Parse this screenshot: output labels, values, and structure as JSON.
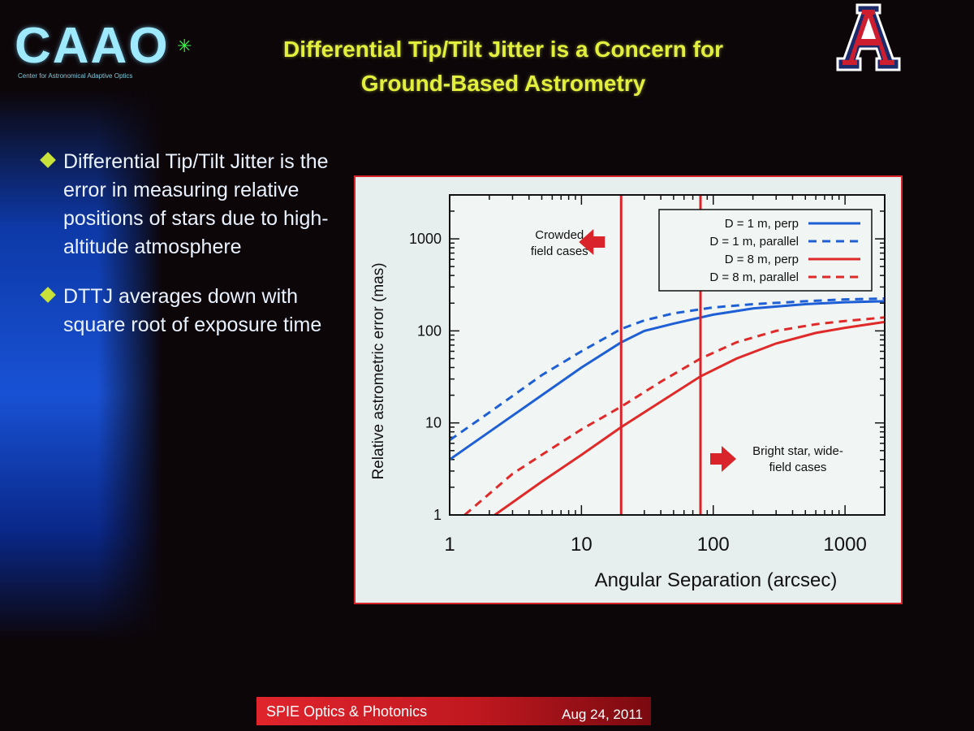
{
  "logo": {
    "text": "CAAO",
    "subtitle": "Center for Astronomical Adaptive Optics"
  },
  "slide": {
    "title_line1": "Differential Tip/Tilt Jitter is a Concern for",
    "title_line2": "Ground-Based Astrometry"
  },
  "university_logo": {
    "letter": "A"
  },
  "bullets": [
    "Differential Tip/Tilt Jitter is the error in measuring relative positions of stars due to high-altitude atmosphere",
    "DTTJ averages down with square root of exposure time"
  ],
  "footer": {
    "left": "SPIE Optics & Photonics",
    "right": "Aug 24, 2011"
  },
  "colors": {
    "title": "#e2ef3d",
    "blue_series": "#1f5fd6",
    "red_series": "#e02a2a",
    "bullet": "#c8e23a",
    "footer": "#d8242a"
  },
  "chart_data": {
    "type": "line",
    "xlabel": "Angular Separation (arcsec)",
    "ylabel": "Relative astrometric error (mas)",
    "xscale": "log",
    "yscale": "log",
    "xlim": [
      1,
      2000
    ],
    "ylim": [
      1,
      3000
    ],
    "xticks": [
      1,
      10,
      100,
      1000
    ],
    "xtick_labels": [
      "1",
      "10",
      "100",
      "1000"
    ],
    "yticks": [
      1,
      10,
      100,
      1000
    ],
    "ytick_labels": [
      "1",
      "10",
      "100",
      "1000"
    ],
    "legend_position": "top-right",
    "series": [
      {
        "name": "D = 1 m, perp",
        "color": "#1f5fd6",
        "dash": false,
        "x": [
          1,
          2,
          5,
          10,
          20,
          30,
          50,
          100,
          200,
          500,
          1000,
          2000
        ],
        "y": [
          4,
          8,
          20,
          40,
          75,
          100,
          120,
          150,
          175,
          195,
          205,
          210
        ]
      },
      {
        "name": "D = 1 m, parallel",
        "color": "#1f5fd6",
        "dash": true,
        "x": [
          1,
          2,
          5,
          10,
          20,
          30,
          50,
          100,
          200,
          500,
          1000,
          2000
        ],
        "y": [
          6.5,
          13,
          33,
          60,
          105,
          130,
          155,
          180,
          195,
          210,
          220,
          225
        ]
      },
      {
        "name": "D = 8 m, perp",
        "color": "#e02a2a",
        "dash": false,
        "x": [
          2.2,
          5,
          10,
          20,
          40,
          80,
          150,
          300,
          600,
          1000,
          2000
        ],
        "y": [
          1,
          2.3,
          4.5,
          9,
          17,
          32,
          50,
          73,
          95,
          108,
          125
        ]
      },
      {
        "name": "D = 8 m, parallel",
        "color": "#e02a2a",
        "dash": true,
        "x": [
          1.3,
          3,
          5,
          10,
          20,
          40,
          80,
          150,
          300,
          600,
          1000,
          2000
        ],
        "y": [
          1,
          2.8,
          4.5,
          8.5,
          15,
          28,
          50,
          75,
          100,
          118,
          128,
          140
        ]
      }
    ],
    "vlines": [
      20,
      80
    ],
    "annotations": [
      {
        "text_lines": [
          "Crowded",
          "field cases"
        ],
        "arrow": "left",
        "x": 20,
        "y": 800
      },
      {
        "text_lines": [
          "Bright star, wide-",
          "field cases"
        ],
        "arrow": "right",
        "x": 80,
        "y": 5
      }
    ]
  }
}
